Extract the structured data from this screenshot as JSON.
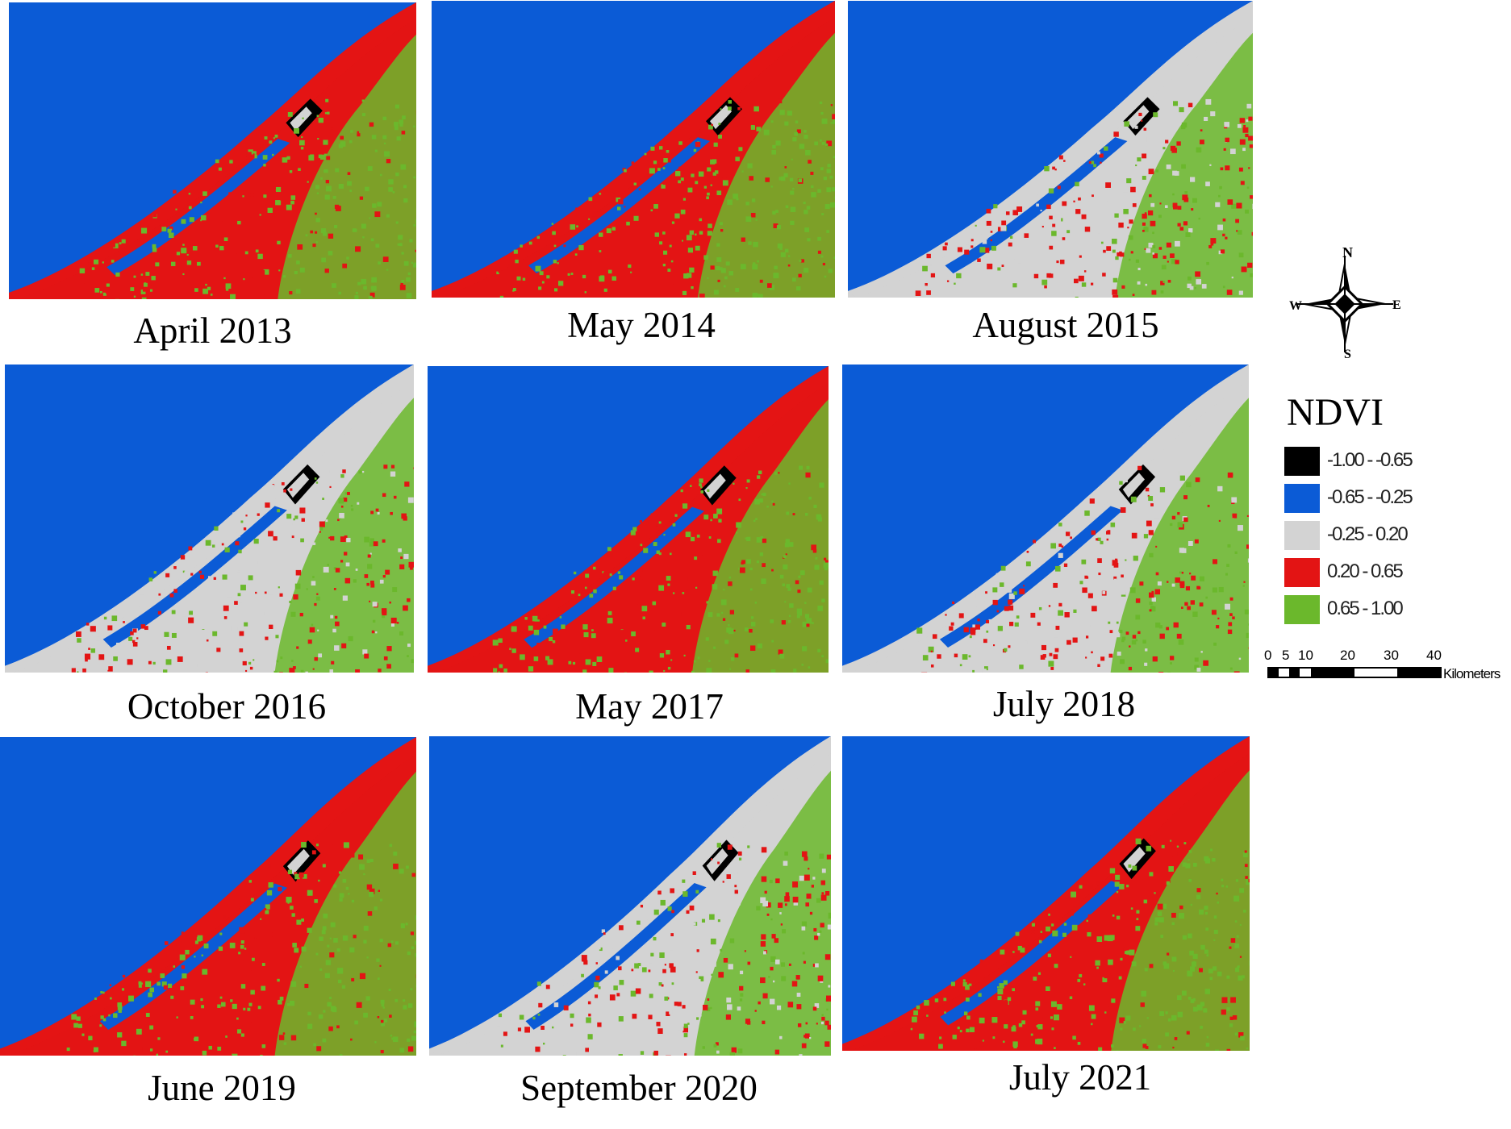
{
  "figure": {
    "panels": [
      {
        "id": "p1",
        "caption": "April 2013",
        "style": "red"
      },
      {
        "id": "p2",
        "caption": "May 2014",
        "style": "red"
      },
      {
        "id": "p3",
        "caption": "August 2015",
        "style": "gray"
      },
      {
        "id": "p4",
        "caption": "October 2016",
        "style": "gray"
      },
      {
        "id": "p5",
        "caption": "May 2017",
        "style": "red"
      },
      {
        "id": "p6",
        "caption": "July 2018",
        "style": "gray"
      },
      {
        "id": "p7",
        "caption": "June 2019",
        "style": "red"
      },
      {
        "id": "p8",
        "caption": "September 2020",
        "style": "gray"
      },
      {
        "id": "p9",
        "caption": "July 2021",
        "style": "red"
      }
    ]
  },
  "legend": {
    "title": "NDVI",
    "classes": [
      {
        "label": "-1.00 - -0.65",
        "color": "#000000"
      },
      {
        "label": "-0.65 - -0.25",
        "color": "#0b5bd6"
      },
      {
        "label": "-0.25 - 0.20",
        "color": "#d3d3d3"
      },
      {
        "label": "0.20 - 0.65",
        "color": "#e31414"
      },
      {
        "label": "0.65 - 1.00",
        "color": "#6bb82c"
      }
    ]
  },
  "compass": {
    "n": "N",
    "s": "S",
    "e": "E",
    "w": "W"
  },
  "scale_bar": {
    "ticks": [
      "0",
      "5",
      "10",
      "20",
      "30",
      "40"
    ],
    "unit": "Kilometers"
  },
  "colors": {
    "water": "#0b5bd6",
    "red": "#e31414",
    "green": "#6bb82c",
    "gray": "#d3d3d3",
    "black": "#000000"
  }
}
